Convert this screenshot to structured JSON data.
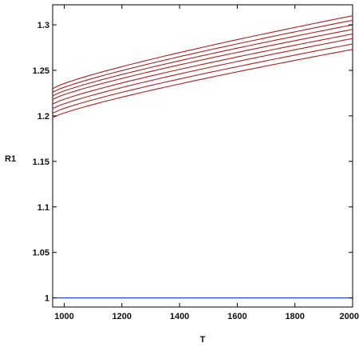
{
  "chart_data": {
    "type": "line",
    "title": "",
    "xlabel": "T",
    "ylabel": "R1",
    "xlim": [
      960,
      2000
    ],
    "ylim": [
      0.99,
      1.322
    ],
    "x_ticks": [
      1000,
      1200,
      1400,
      1600,
      1800,
      2000
    ],
    "x_tick_labels": [
      "1000",
      "1200",
      "1400",
      "1600",
      "1800",
      "2000"
    ],
    "y_ticks": [
      1,
      1.05,
      1.1,
      1.15,
      1.2,
      1.25,
      1.3
    ],
    "y_tick_labels": [
      "1",
      "1.05",
      "1.1",
      "1.15",
      "1.2",
      "1.25",
      "1.3"
    ],
    "grid": false,
    "legend": "none",
    "colors": {
      "curves": "#b21e1e",
      "baseline": "#1f3fcf",
      "axes": "#000000"
    },
    "series": [
      {
        "x": [
          960,
          2000
        ],
        "y": [
          1.23,
          1.31
        ],
        "color": "#b21e1e"
      },
      {
        "x": [
          960,
          2000
        ],
        "y": [
          1.226,
          1.305
        ],
        "color": "#b21e1e"
      },
      {
        "x": [
          960,
          2000
        ],
        "y": [
          1.222,
          1.3
        ],
        "color": "#b21e1e"
      },
      {
        "x": [
          960,
          2000
        ],
        "y": [
          1.218,
          1.295
        ],
        "color": "#b21e1e"
      },
      {
        "x": [
          960,
          2000
        ],
        "y": [
          1.213,
          1.29
        ],
        "color": "#b21e1e"
      },
      {
        "x": [
          960,
          2000
        ],
        "y": [
          1.208,
          1.285
        ],
        "color": "#b21e1e"
      },
      {
        "x": [
          960,
          2000
        ],
        "y": [
          1.203,
          1.279
        ],
        "color": "#b21e1e"
      },
      {
        "x": [
          960,
          2000
        ],
        "y": [
          1.198,
          1.273
        ],
        "color": "#b21e1e"
      },
      {
        "x": [
          960,
          2000
        ],
        "y": [
          1.0,
          1.0
        ],
        "color": "#1f3fcf"
      }
    ]
  }
}
